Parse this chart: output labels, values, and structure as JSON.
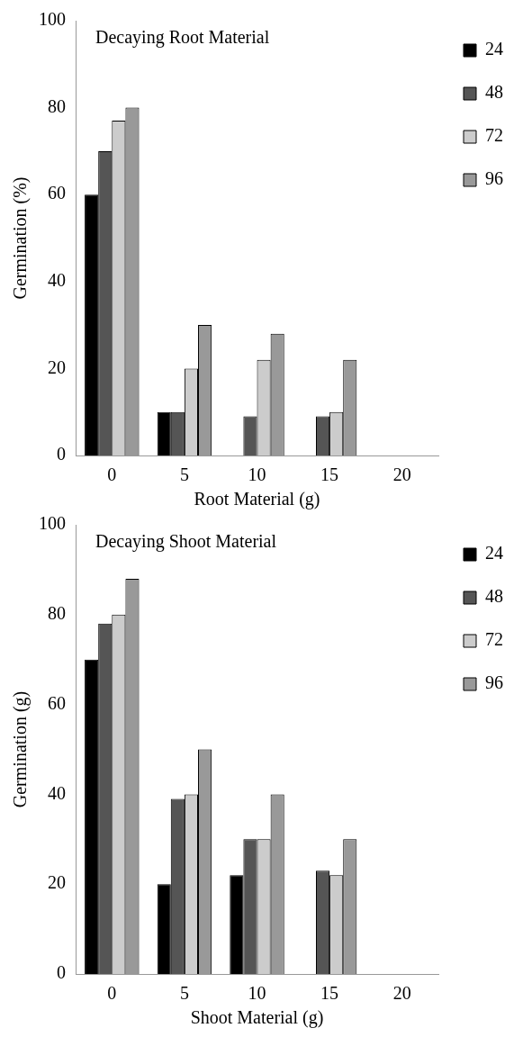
{
  "chart_data": [
    {
      "type": "bar",
      "title": "Decaying Root Material",
      "xlabel": "Root Material (g)",
      "ylabel": "Germination (%)",
      "categories": [
        "0",
        "5",
        "10",
        "15",
        "20"
      ],
      "series": [
        {
          "name": "24",
          "color": "#000000",
          "values": [
            60,
            10,
            null,
            null,
            null
          ]
        },
        {
          "name": "48",
          "color": "#555555",
          "values": [
            70,
            10,
            9,
            9,
            null
          ]
        },
        {
          "name": "72",
          "color": "#cccccc",
          "values": [
            77,
            20,
            22,
            10,
            null
          ]
        },
        {
          "name": "96",
          "color": "#999999",
          "values": [
            80,
            30,
            28,
            22,
            null
          ]
        }
      ],
      "ylim": [
        0,
        100
      ],
      "yticks": [
        0,
        20,
        40,
        60,
        80,
        100
      ],
      "grid": false,
      "legend": "top right"
    },
    {
      "type": "bar",
      "title": "Decaying Shoot Material",
      "xlabel": "Shoot Material (g)",
      "ylabel": "Germination (g)",
      "categories": [
        "0",
        "5",
        "10",
        "15",
        "20"
      ],
      "series": [
        {
          "name": "24",
          "color": "#000000",
          "values": [
            70,
            20,
            22,
            null,
            null
          ]
        },
        {
          "name": "48",
          "color": "#555555",
          "values": [
            78,
            39,
            30,
            23,
            null
          ]
        },
        {
          "name": "72",
          "color": "#cccccc",
          "values": [
            80,
            40,
            30,
            22,
            null
          ]
        },
        {
          "name": "96",
          "color": "#999999",
          "values": [
            88,
            50,
            40,
            30,
            null
          ]
        }
      ],
      "ylim": [
        0,
        100
      ],
      "yticks": [
        0,
        20,
        40,
        60,
        80,
        100
      ],
      "grid": false,
      "legend": "top right"
    }
  ]
}
